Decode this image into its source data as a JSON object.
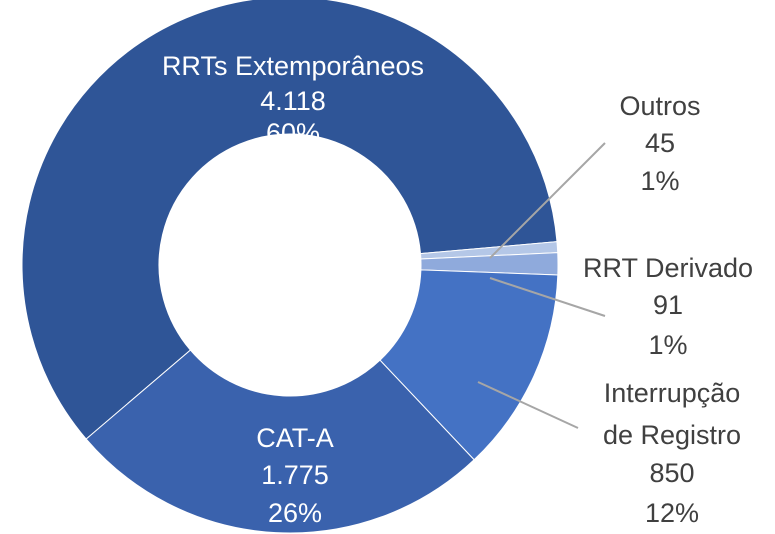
{
  "chart_data": {
    "type": "donut",
    "categories": [
      "RRTs Extemporâneos",
      "Outros",
      "RRT Derivado",
      "Interrupção de Registro",
      "CAT-A"
    ],
    "values": [
      4118,
      45,
      91,
      850,
      1775
    ],
    "value_labels": [
      "4.118",
      "45",
      "91",
      "850",
      "1.775"
    ],
    "percent_labels": [
      "60%",
      "1%",
      "1%",
      "12%",
      "26%"
    ],
    "colors": [
      "#2f5597",
      "#b4c7e7",
      "#8faadc",
      "#4472c4",
      "#3a62ad"
    ]
  }
}
